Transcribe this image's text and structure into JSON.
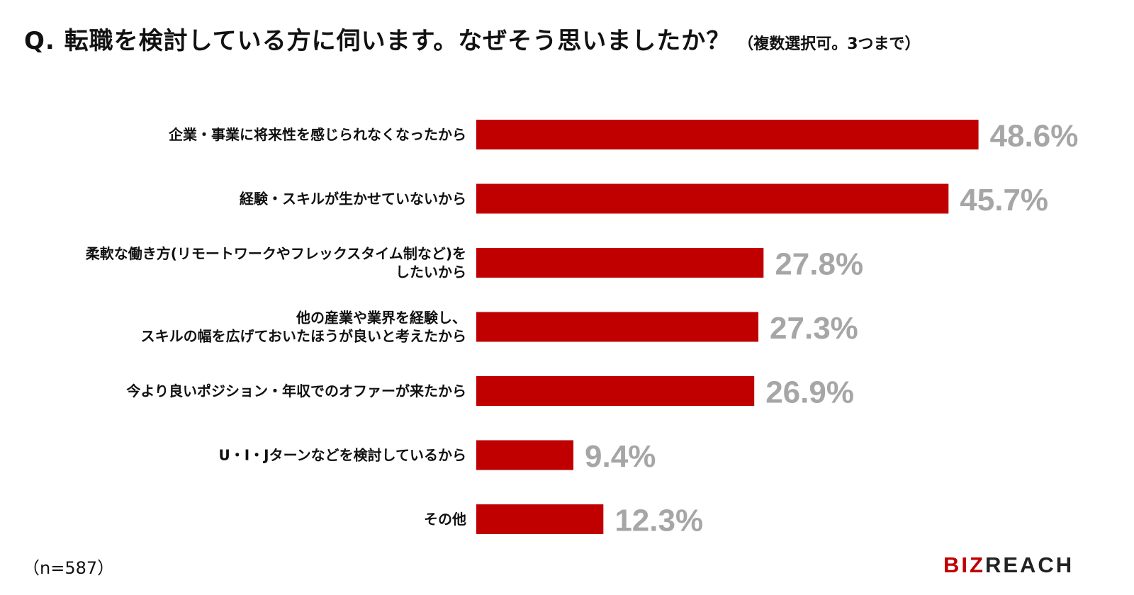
{
  "title": {
    "main": "Q. 転職を検討している方に伺います。なぜそう思いましたか？",
    "sub": "（複数選択可。3つまで）"
  },
  "note": "（n=587）",
  "logo": {
    "accent": "BIZ",
    "rest": "REACH"
  },
  "colors": {
    "bar": "#c00000",
    "value_label": "#a6a6a6",
    "text": "#111111"
  },
  "chart_data": {
    "type": "bar",
    "orientation": "horizontal",
    "unit": "%",
    "xlim": [
      0,
      55
    ],
    "grid": false,
    "categories": [
      [
        "企業・事業に将来性を感じられなくなったから"
      ],
      [
        "経験・スキルが生かせていないから"
      ],
      [
        "柔軟な働き方(リモートワークやフレックスタイム制など)を",
        "したいから"
      ],
      [
        "他の産業や業界を経験し、",
        "スキルの幅を広げておいたほうが良いと考えたから"
      ],
      [
        "今より良いポジション・年収でのオファーが来たから"
      ],
      [
        "U・I・Jターンなどを検討しているから"
      ],
      [
        "その他"
      ]
    ],
    "values": [
      48.6,
      45.7,
      27.8,
      27.3,
      26.9,
      9.4,
      12.3
    ],
    "value_labels": [
      "48.6%",
      "45.7%",
      "27.8%",
      "27.3%",
      "26.9%",
      "9.4%",
      "12.3%"
    ]
  }
}
